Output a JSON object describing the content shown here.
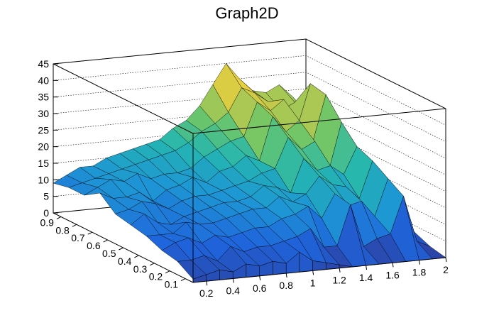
{
  "chart_data": {
    "type": "surface3d",
    "title": "Graph2D",
    "x_axis": {
      "range": [
        0.1,
        2.0
      ],
      "tick_labels": [
        "0.2",
        "0.4",
        "0.6",
        "0.8",
        "1",
        "1.2",
        "1.4",
        "1.6",
        "1.8",
        "2"
      ]
    },
    "y_axis": {
      "range": [
        0.05,
        0.95
      ],
      "tick_labels": [
        "0.1",
        "0.2",
        "0.3",
        "0.4",
        "0.5",
        "0.6",
        "0.7",
        "0.8",
        "0.9"
      ]
    },
    "z_axis": {
      "range": [
        0,
        45
      ],
      "tick_labels": [
        "0",
        "5",
        "10",
        "15",
        "20",
        "25",
        "30",
        "35",
        "40",
        "45"
      ]
    },
    "grid": true,
    "colormap": [
      "#2d3f9e",
      "#1f64dc",
      "#1e96d4",
      "#25b6b0",
      "#6cc66a",
      "#c7c94a",
      "#f8d43a"
    ],
    "surface_z": [
      [
        1,
        2,
        3,
        2,
        4,
        3,
        4,
        3,
        6,
        3,
        2,
        1,
        0,
        0,
        0,
        0,
        0,
        0,
        0,
        0
      ],
      [
        4,
        4,
        5,
        3,
        7,
        5,
        6,
        6,
        7,
        8,
        10,
        4,
        4,
        16,
        3,
        5,
        6,
        17,
        3,
        1
      ],
      [
        5,
        7,
        8,
        6,
        8,
        7,
        8,
        9,
        9,
        11,
        12,
        14,
        10,
        17,
        13,
        14,
        9,
        20,
        8,
        3
      ],
      [
        7,
        7,
        7,
        10,
        9,
        9,
        10,
        11,
        12,
        12,
        15,
        13,
        15,
        20,
        17,
        16,
        12,
        23,
        11,
        5
      ],
      [
        8,
        11,
        8,
        7,
        9,
        10,
        11,
        12,
        12,
        13,
        16,
        15,
        13,
        23,
        19,
        20,
        17,
        25,
        15,
        7
      ],
      [
        9,
        10,
        12,
        11,
        9,
        11,
        12,
        12,
        13,
        14,
        15,
        17,
        18,
        27,
        23,
        25,
        15,
        30,
        18,
        8
      ],
      [
        13,
        11,
        11,
        12,
        9,
        12,
        13,
        15,
        13,
        16,
        17,
        20,
        18,
        31,
        26,
        29,
        22,
        36,
        22,
        10
      ],
      [
        10,
        12,
        14,
        13,
        15,
        13,
        14,
        14,
        15,
        18,
        20,
        22,
        23,
        33,
        30,
        33,
        24,
        37,
        26,
        12
      ],
      [
        10,
        11,
        12,
        13,
        14,
        15,
        16,
        17,
        18,
        20,
        23,
        25,
        28,
        35,
        33,
        30,
        27,
        29,
        25,
        14
      ],
      [
        9,
        11,
        13,
        13,
        15,
        16,
        17,
        18,
        19,
        22,
        24,
        28,
        34,
        40,
        35,
        31,
        30,
        32,
        28,
        16
      ]
    ]
  }
}
